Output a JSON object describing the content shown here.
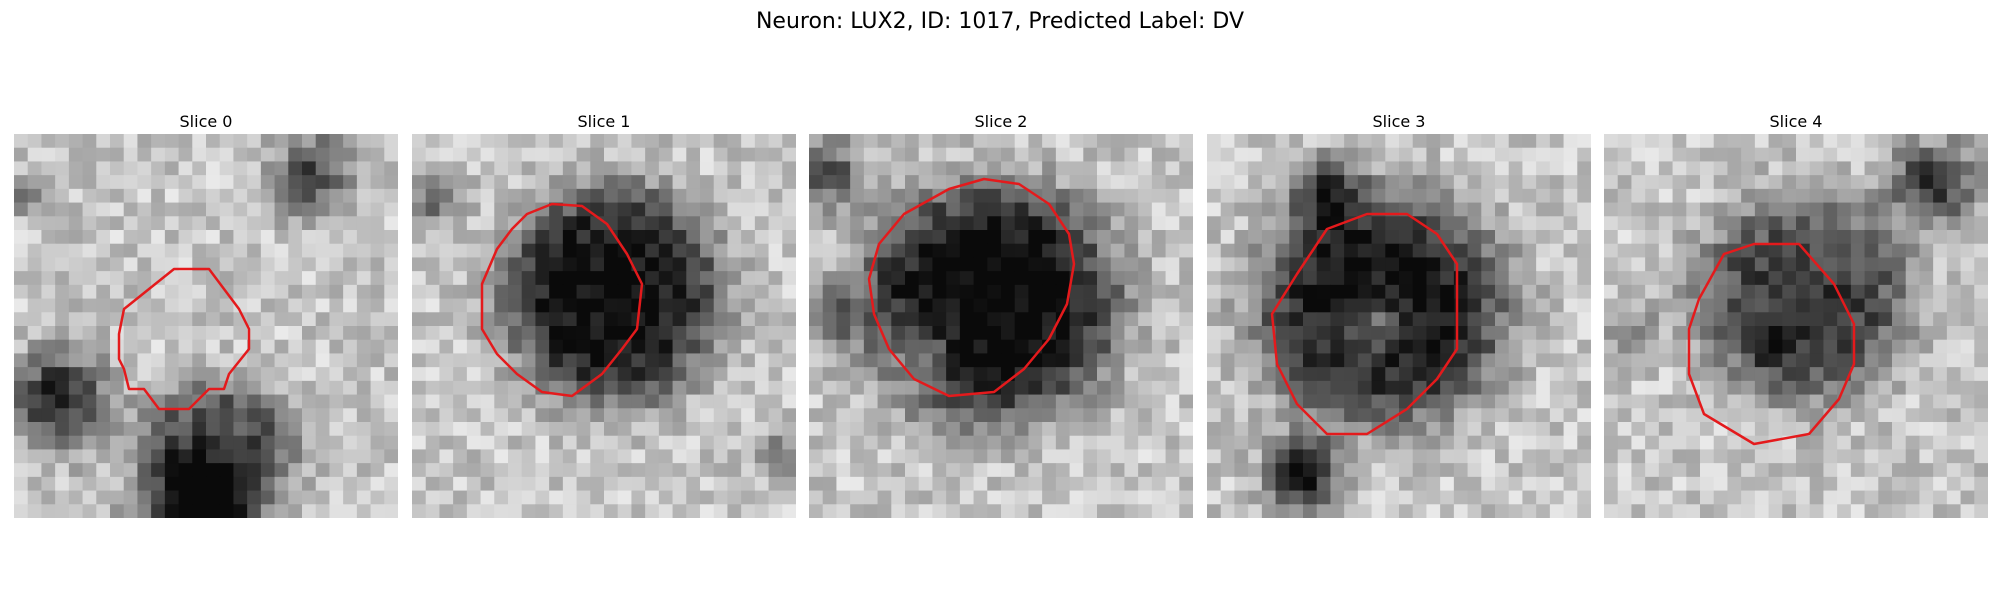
{
  "figure": {
    "title": "Neuron: LUX2, ID: 1017, Predicted Label: DV"
  },
  "panels": [
    {
      "title": "Slice 0"
    },
    {
      "title": "Slice 1"
    },
    {
      "title": "Slice 2"
    },
    {
      "title": "Slice 3"
    },
    {
      "title": "Slice 4"
    }
  ],
  "colors": {
    "contour": "#e41a1c",
    "background": "#ffffff"
  }
}
